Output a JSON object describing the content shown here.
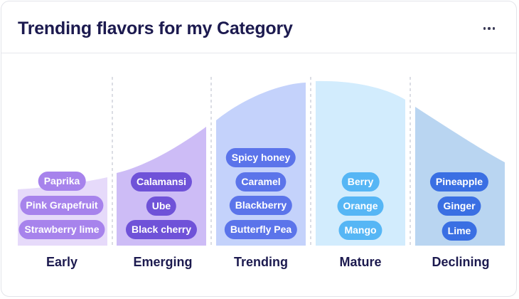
{
  "title": "Trending flavors for my Category",
  "menu_icon": "more-horizontal-icon",
  "stages": [
    {
      "label": "Early",
      "flavors": [
        "Paprika",
        "Pink Grapefruit",
        "Strawberry lime"
      ]
    },
    {
      "label": "Emerging",
      "flavors": [
        "Calamansi",
        "Ube",
        "Black cherry"
      ]
    },
    {
      "label": "Trending",
      "flavors": [
        "Spicy honey",
        "Caramel",
        "Blackberry",
        "Butterfly Pea"
      ]
    },
    {
      "label": "Mature",
      "flavors": [
        "Berry",
        "Orange",
        "Mango"
      ]
    },
    {
      "label": "Declining",
      "flavors": [
        "Pineapple",
        "Ginger",
        "Lime"
      ]
    }
  ],
  "colors": {
    "segment_fills": [
      "#e6dafa",
      "#cdbcf6",
      "#c4d2fb",
      "#d2ecfd",
      "#b9d5f1"
    ],
    "pill_fills": [
      "#a783ec",
      "#6f52d8",
      "#5b74ea",
      "#56b6f5",
      "#3a6fe3"
    ],
    "title": "#1c1a4f"
  }
}
